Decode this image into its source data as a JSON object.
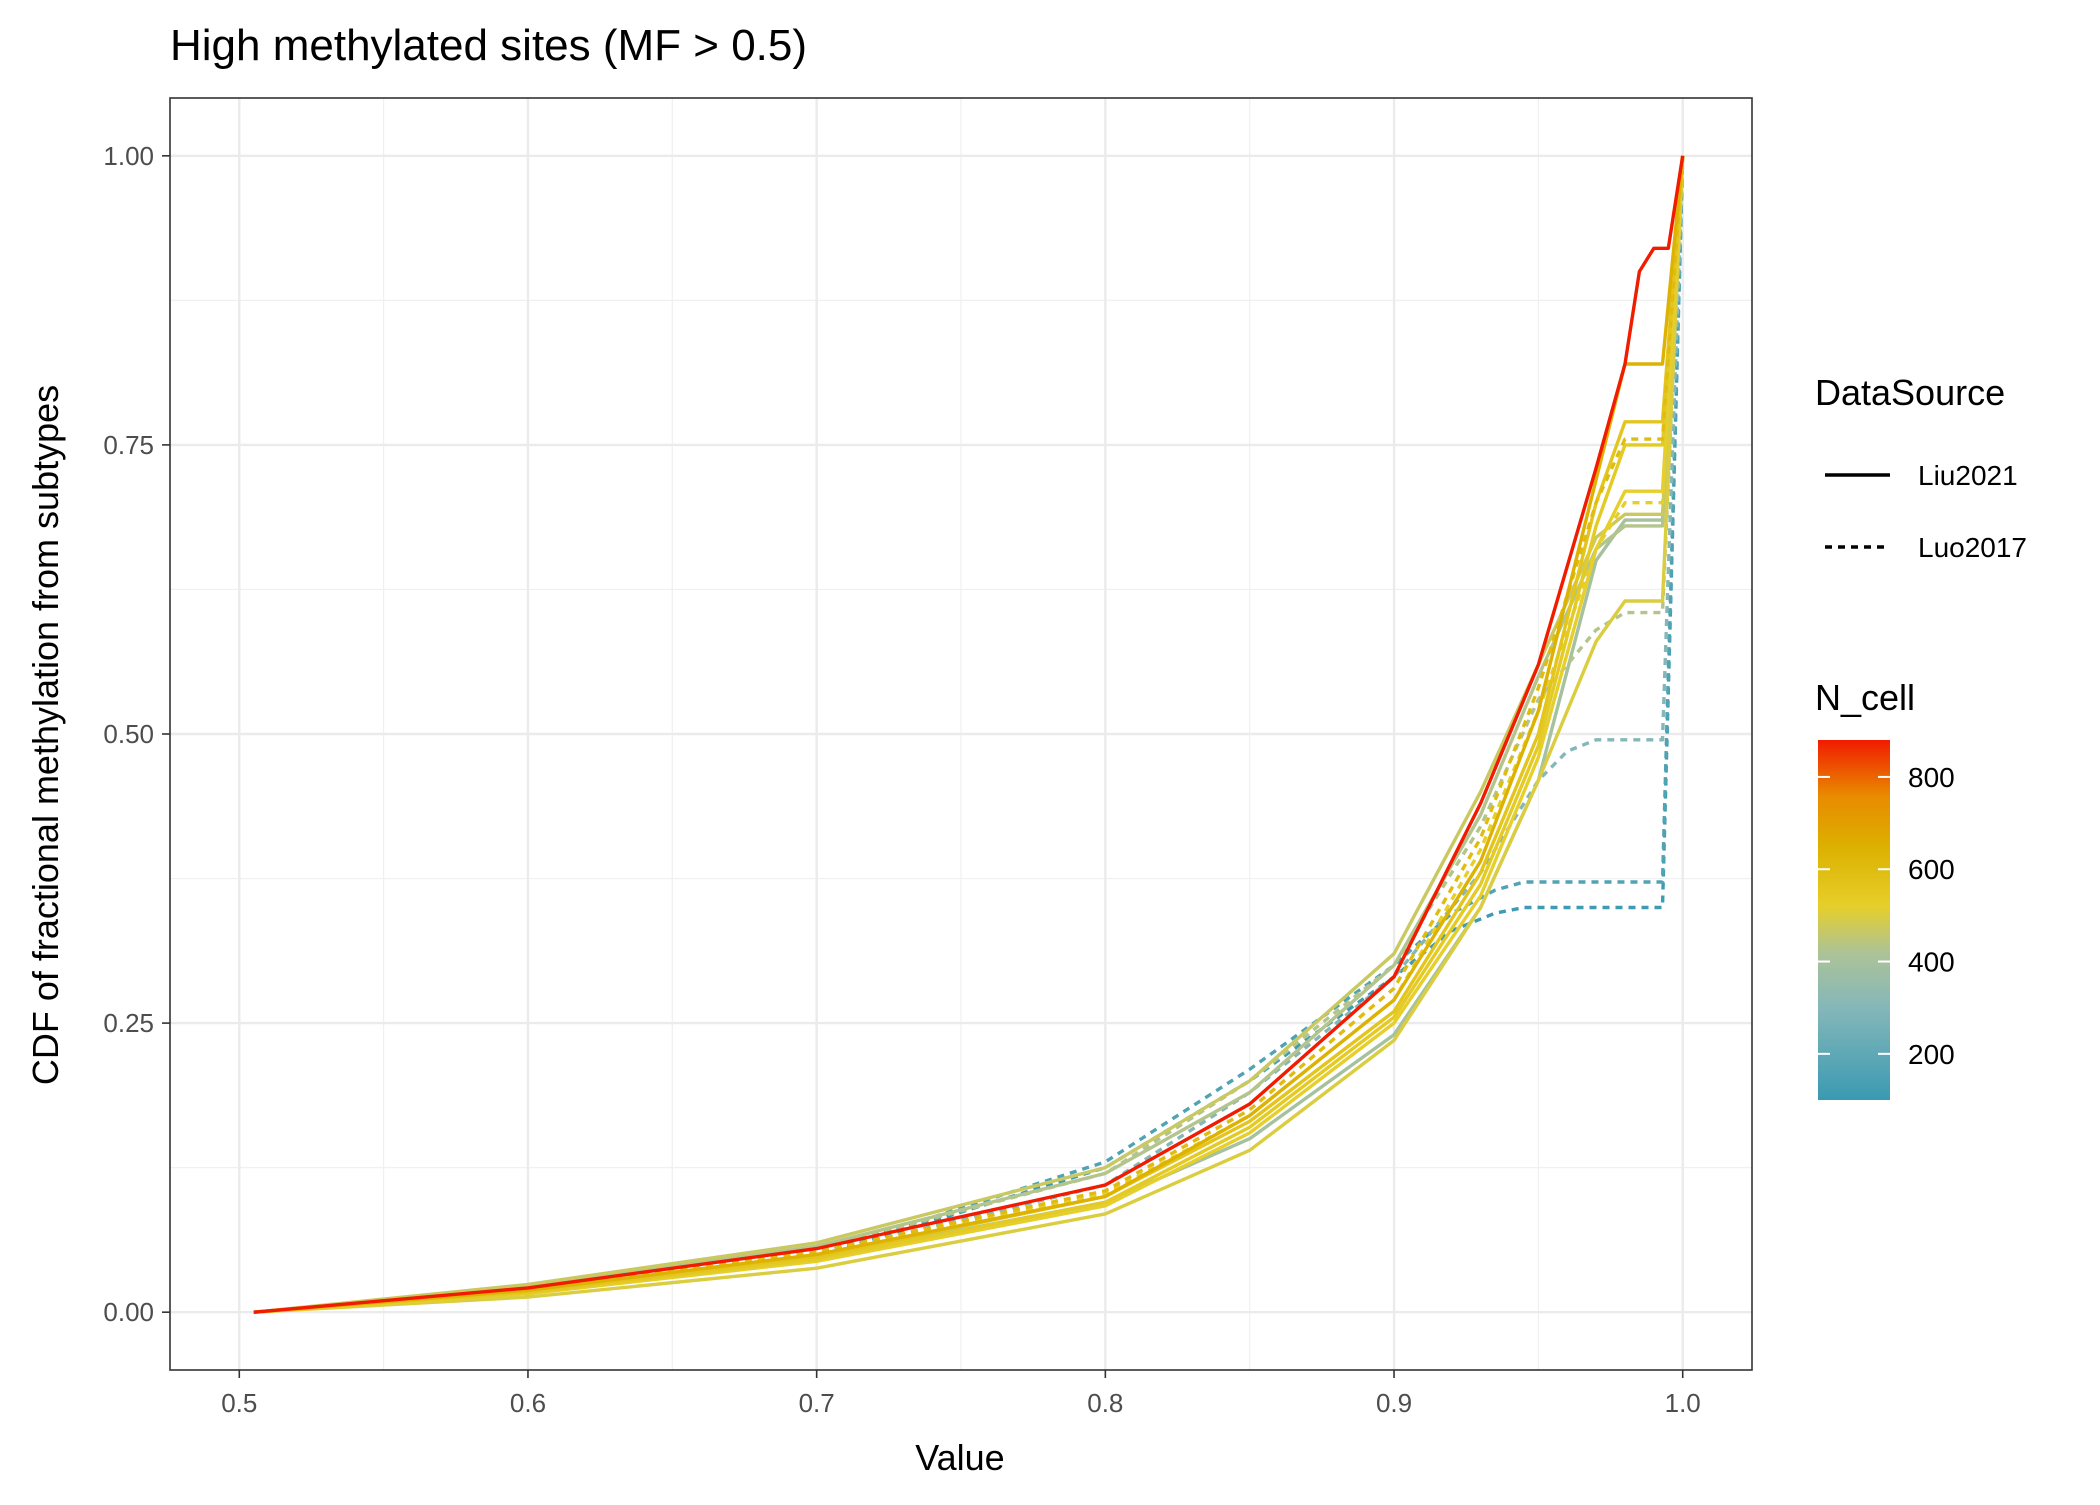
{
  "chart_data": {
    "type": "line",
    "title": "High methylated sites (MF > 0.5)",
    "xlabel": "Value",
    "ylabel": "CDF of fractional methylation from subtypes",
    "xlim": [
      0.476,
      1.024
    ],
    "ylim": [
      -0.05,
      1.05
    ],
    "x_ticks": [
      0.5,
      0.6,
      0.7,
      0.8,
      0.9,
      1.0
    ],
    "x_tick_labels": [
      "0.5",
      "0.6",
      "0.7",
      "0.8",
      "0.9",
      "1.0"
    ],
    "y_ticks": [
      0,
      0.25,
      0.5,
      0.75,
      1.0
    ],
    "y_tick_labels": [
      "0.00",
      "0.25",
      "0.50",
      "0.75",
      "1.00"
    ],
    "grid": true,
    "legend_position": "right",
    "legend": {
      "linetype_title": "DataSource",
      "linetype_entries": [
        {
          "label": "Liu2021",
          "dash": "solid"
        },
        {
          "label": "Luo2017",
          "dash": "dashed"
        }
      ],
      "color_title": "N_cell",
      "color_ticks": [
        200,
        400,
        600,
        800
      ],
      "color_tick_labels": [
        "200",
        "400",
        "600",
        "800"
      ],
      "color_range": [
        100,
        880
      ],
      "color_stops": [
        {
          "value": 100,
          "color": "#3A9AB2"
        },
        {
          "value": 300,
          "color": "#85B7B9"
        },
        {
          "value": 420,
          "color": "#ADC397"
        },
        {
          "value": 520,
          "color": "#E6CF2A"
        },
        {
          "value": 650,
          "color": "#DCB000"
        },
        {
          "value": 760,
          "color": "#E98A00"
        },
        {
          "value": 880,
          "color": "#F11B00"
        }
      ]
    },
    "series": [
      {
        "source": "Liu2021",
        "n_cell": 880,
        "x": [
          0.505,
          0.6,
          0.7,
          0.8,
          0.85,
          0.9,
          0.93,
          0.95,
          0.97,
          0.98,
          0.985,
          0.99,
          0.995,
          1.0
        ],
        "y": [
          0,
          0.021,
          0.055,
          0.11,
          0.18,
          0.29,
          0.44,
          0.56,
          0.73,
          0.82,
          0.9,
          0.92,
          0.92,
          1.0
        ]
      },
      {
        "source": "Liu2021",
        "n_cell": 640,
        "x": [
          0.505,
          0.6,
          0.7,
          0.8,
          0.85,
          0.9,
          0.93,
          0.95,
          0.97,
          0.98,
          0.993,
          1.0
        ],
        "y": [
          0,
          0.019,
          0.05,
          0.1,
          0.17,
          0.27,
          0.39,
          0.52,
          0.72,
          0.82,
          0.82,
          1.0
        ]
      },
      {
        "source": "Liu2021",
        "n_cell": 560,
        "x": [
          0.505,
          0.6,
          0.7,
          0.8,
          0.85,
          0.9,
          0.93,
          0.95,
          0.97,
          0.98,
          0.993,
          1.0
        ],
        "y": [
          0,
          0.018,
          0.048,
          0.1,
          0.165,
          0.26,
          0.38,
          0.5,
          0.7,
          0.77,
          0.77,
          1.0
        ]
      },
      {
        "source": "Liu2021",
        "n_cell": 540,
        "x": [
          0.505,
          0.6,
          0.7,
          0.8,
          0.85,
          0.9,
          0.93,
          0.95,
          0.97,
          0.98,
          0.993,
          1.0
        ],
        "y": [
          0,
          0.017,
          0.046,
          0.095,
          0.16,
          0.255,
          0.37,
          0.49,
          0.68,
          0.75,
          0.75,
          1.0
        ]
      },
      {
        "source": "Liu2021",
        "n_cell": 520,
        "x": [
          0.505,
          0.6,
          0.7,
          0.8,
          0.85,
          0.9,
          0.93,
          0.95,
          0.97,
          0.98,
          0.993,
          1.0
        ],
        "y": [
          0,
          0.016,
          0.044,
          0.092,
          0.155,
          0.25,
          0.36,
          0.48,
          0.66,
          0.71,
          0.71,
          1.0
        ]
      },
      {
        "source": "Liu2021",
        "n_cell": 500,
        "x": [
          0.505,
          0.6,
          0.7,
          0.8,
          0.85,
          0.9,
          0.93,
          0.95,
          0.97,
          0.98,
          0.993,
          1.0
        ],
        "y": [
          0,
          0.013,
          0.038,
          0.085,
          0.14,
          0.235,
          0.35,
          0.46,
          0.58,
          0.615,
          0.615,
          1.0
        ]
      },
      {
        "source": "Liu2021",
        "n_cell": 470,
        "x": [
          0.505,
          0.6,
          0.7,
          0.8,
          0.85,
          0.9,
          0.93,
          0.95,
          0.97,
          0.98,
          0.993,
          1.0
        ],
        "y": [
          0,
          0.024,
          0.06,
          0.125,
          0.2,
          0.31,
          0.45,
          0.56,
          0.67,
          0.69,
          0.69,
          1.0
        ]
      },
      {
        "source": "Liu2021",
        "n_cell": 430,
        "x": [
          0.505,
          0.6,
          0.7,
          0.8,
          0.85,
          0.9,
          0.93,
          0.95,
          0.97,
          0.98,
          0.993,
          1.0
        ],
        "y": [
          0,
          0.022,
          0.057,
          0.12,
          0.19,
          0.3,
          0.43,
          0.55,
          0.66,
          0.68,
          0.68,
          1.0
        ]
      },
      {
        "source": "Liu2021",
        "n_cell": 400,
        "x": [
          0.505,
          0.6,
          0.7,
          0.8,
          0.85,
          0.9,
          0.93,
          0.95,
          0.97,
          0.98,
          0.993,
          1.0
        ],
        "y": [
          0,
          0.017,
          0.047,
          0.095,
          0.15,
          0.24,
          0.35,
          0.46,
          0.65,
          0.685,
          0.685,
          1.0
        ]
      },
      {
        "source": "Luo2017",
        "n_cell": 600,
        "x": [
          0.505,
          0.6,
          0.7,
          0.8,
          0.85,
          0.9,
          0.93,
          0.95,
          0.97,
          0.98,
          0.993,
          1.0
        ],
        "y": [
          0,
          0.02,
          0.052,
          0.105,
          0.175,
          0.28,
          0.41,
          0.54,
          0.7,
          0.755,
          0.755,
          1.0
        ]
      },
      {
        "source": "Luo2017",
        "n_cell": 520,
        "x": [
          0.505,
          0.6,
          0.7,
          0.8,
          0.85,
          0.9,
          0.93,
          0.95,
          0.97,
          0.98,
          0.993,
          1.0
        ],
        "y": [
          0,
          0.019,
          0.05,
          0.102,
          0.17,
          0.27,
          0.4,
          0.52,
          0.66,
          0.7,
          0.7,
          1.0
        ]
      },
      {
        "source": "Luo2017",
        "n_cell": 430,
        "x": [
          0.505,
          0.6,
          0.7,
          0.8,
          0.85,
          0.9,
          0.93,
          0.95,
          0.97,
          0.98,
          0.993,
          1.0
        ],
        "y": [
          0,
          0.021,
          0.055,
          0.12,
          0.2,
          0.3,
          0.42,
          0.53,
          0.59,
          0.605,
          0.605,
          1.0
        ]
      },
      {
        "source": "Luo2017",
        "n_cell": 300,
        "x": [
          0.505,
          0.6,
          0.7,
          0.8,
          0.85,
          0.9,
          0.93,
          0.95,
          0.96,
          0.97,
          0.993,
          1.0
        ],
        "y": [
          0,
          0.018,
          0.05,
          0.11,
          0.19,
          0.29,
          0.38,
          0.46,
          0.485,
          0.495,
          0.495,
          1.0
        ]
      },
      {
        "source": "Luo2017",
        "n_cell": 160,
        "x": [
          0.505,
          0.6,
          0.7,
          0.8,
          0.85,
          0.9,
          0.92,
          0.935,
          0.945,
          0.993,
          1.0
        ],
        "y": [
          0,
          0.018,
          0.05,
          0.13,
          0.21,
          0.3,
          0.345,
          0.365,
          0.372,
          0.372,
          1.0
        ]
      },
      {
        "source": "Luo2017",
        "n_cell": 110,
        "x": [
          0.505,
          0.6,
          0.7,
          0.8,
          0.85,
          0.9,
          0.92,
          0.935,
          0.945,
          0.993,
          1.0
        ],
        "y": [
          0,
          0.016,
          0.048,
          0.125,
          0.2,
          0.29,
          0.33,
          0.345,
          0.35,
          0.35,
          1.0
        ]
      }
    ]
  }
}
